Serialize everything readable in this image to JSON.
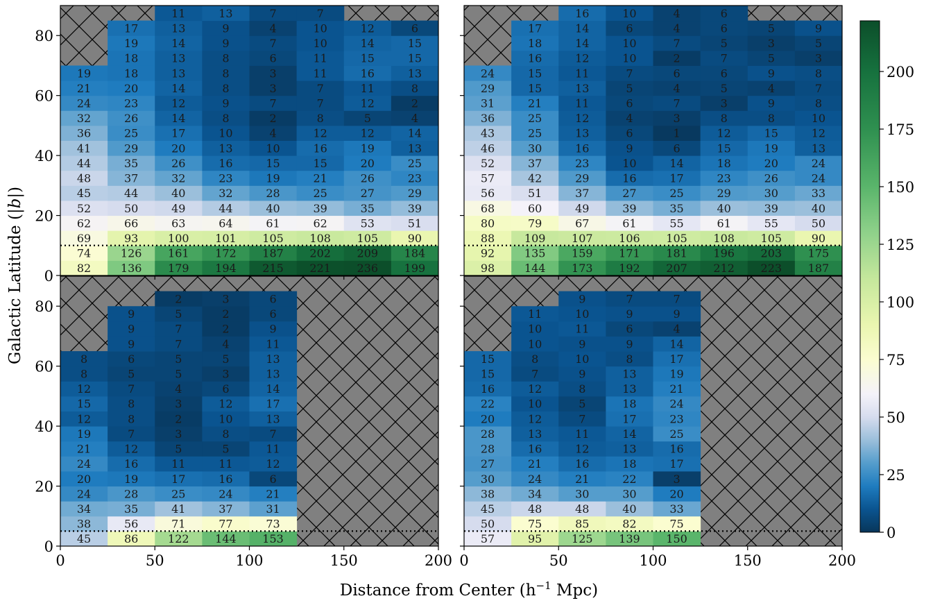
{
  "chart_data": {
    "type": "heatmap",
    "xlabel": "Distance from Center (h",
    "xlabel_sup": "−1",
    "xlabel_tail": " Mpc)",
    "ylabel_main": "Galactic Latitude (",
    "ylabel_b": "|b|",
    "ylabel_close": ")",
    "xlim": [
      0,
      200
    ],
    "ylim": [
      0,
      90
    ],
    "x_ticks": [
      "0",
      "50",
      "100",
      "150",
      "200"
    ],
    "y_ticks": [
      "0",
      "20",
      "40",
      "60",
      "80"
    ],
    "colorbar": {
      "vmin": 0,
      "vmax": 222,
      "ticks": [
        "0",
        "25",
        "50",
        "75",
        "100",
        "125",
        "150",
        "175",
        "200"
      ],
      "tick_values": [
        0,
        25,
        50,
        75,
        100,
        125,
        150,
        175,
        200
      ]
    },
    "colors": {
      "masked": "#808080",
      "dotted_line": "#000000",
      "cmap_stops": [
        {
          "v": 0,
          "c": "#08365a"
        },
        {
          "v": 10,
          "c": "#0a5490"
        },
        {
          "v": 20,
          "c": "#1f7cbf"
        },
        {
          "v": 30,
          "c": "#559dcc"
        },
        {
          "v": 40,
          "c": "#9bbfdb"
        },
        {
          "v": 50,
          "c": "#d6dcee"
        },
        {
          "v": 60,
          "c": "#f4f2f9"
        },
        {
          "v": 75,
          "c": "#fbfdd0"
        },
        {
          "v": 90,
          "c": "#eaf6b0"
        },
        {
          "v": 110,
          "c": "#c5e79c"
        },
        {
          "v": 130,
          "c": "#8fd18a"
        },
        {
          "v": 150,
          "c": "#5ab56b"
        },
        {
          "v": 175,
          "c": "#2f9050"
        },
        {
          "v": 200,
          "c": "#16713e"
        },
        {
          "v": 222,
          "c": "#0c4e2a"
        }
      ]
    },
    "panels": [
      {
        "id": "top-left",
        "dotted_line_y": 10,
        "y_edges": [
          0,
          5,
          10,
          15,
          20,
          25,
          30,
          35,
          40,
          45,
          50,
          55,
          60,
          65,
          70,
          75,
          80,
          85,
          90
        ],
        "x_edges": [
          0,
          25,
          50,
          75,
          100,
          125,
          150,
          175,
          200
        ],
        "values": [
          [
            82,
            136,
            179,
            194,
            215,
            221,
            236,
            199
          ],
          [
            74,
            126,
            161,
            172,
            187,
            202,
            209,
            184
          ],
          [
            69,
            93,
            100,
            101,
            105,
            108,
            105,
            90
          ],
          [
            62,
            66,
            63,
            64,
            61,
            62,
            53,
            51
          ],
          [
            52,
            50,
            49,
            44,
            40,
            39,
            35,
            39
          ],
          [
            45,
            44,
            40,
            32,
            28,
            25,
            27,
            29
          ],
          [
            48,
            37,
            32,
            23,
            19,
            21,
            26,
            23
          ],
          [
            44,
            35,
            26,
            16,
            15,
            15,
            20,
            25
          ],
          [
            41,
            29,
            20,
            13,
            10,
            16,
            19,
            13
          ],
          [
            36,
            25,
            17,
            10,
            4,
            12,
            12,
            14
          ],
          [
            32,
            26,
            14,
            8,
            2,
            8,
            5,
            4
          ],
          [
            24,
            23,
            12,
            9,
            7,
            7,
            12,
            2
          ],
          [
            21,
            20,
            14,
            8,
            3,
            7,
            11,
            8
          ],
          [
            19,
            18,
            13,
            8,
            3,
            11,
            16,
            13
          ],
          [
            null,
            18,
            13,
            8,
            6,
            11,
            15,
            15
          ],
          [
            null,
            19,
            14,
            9,
            7,
            10,
            14,
            15
          ],
          [
            null,
            17,
            13,
            9,
            4,
            10,
            12,
            6
          ],
          [
            null,
            null,
            11,
            13,
            7,
            7,
            null,
            null
          ]
        ]
      },
      {
        "id": "top-right",
        "dotted_line_y": 10,
        "y_edges": [
          0,
          5,
          10,
          15,
          20,
          25,
          30,
          35,
          40,
          45,
          50,
          55,
          60,
          65,
          70,
          75,
          80,
          85,
          90
        ],
        "x_edges": [
          0,
          25,
          50,
          75,
          100,
          125,
          150,
          175,
          200
        ],
        "values": [
          [
            98,
            144,
            173,
            192,
            207,
            212,
            223,
            187
          ],
          [
            92,
            135,
            159,
            171,
            181,
            196,
            203,
            175
          ],
          [
            88,
            109,
            107,
            106,
            105,
            108,
            105,
            90
          ],
          [
            80,
            79,
            67,
            61,
            55,
            61,
            55,
            50
          ],
          [
            68,
            60,
            49,
            39,
            35,
            40,
            39,
            40
          ],
          [
            56,
            51,
            37,
            27,
            25,
            29,
            30,
            33
          ],
          [
            57,
            42,
            29,
            16,
            17,
            23,
            26,
            24
          ],
          [
            52,
            37,
            23,
            10,
            14,
            18,
            20,
            24
          ],
          [
            46,
            30,
            16,
            9,
            6,
            15,
            19,
            13
          ],
          [
            43,
            25,
            13,
            6,
            1,
            12,
            15,
            12
          ],
          [
            36,
            25,
            12,
            4,
            3,
            8,
            8,
            10
          ],
          [
            31,
            21,
            11,
            6,
            7,
            3,
            9,
            8
          ],
          [
            29,
            15,
            13,
            5,
            4,
            5,
            4,
            7
          ],
          [
            24,
            15,
            11,
            7,
            6,
            6,
            9,
            8
          ],
          [
            null,
            16,
            12,
            10,
            2,
            7,
            5,
            3
          ],
          [
            null,
            18,
            14,
            10,
            7,
            5,
            3,
            5
          ],
          [
            null,
            17,
            14,
            6,
            4,
            6,
            5,
            9
          ],
          [
            null,
            null,
            16,
            10,
            4,
            6,
            null,
            null
          ]
        ]
      },
      {
        "id": "bottom-left",
        "dotted_line_y": 5,
        "y_edges": [
          0,
          5,
          10,
          15,
          20,
          25,
          30,
          35,
          40,
          45,
          50,
          55,
          60,
          65,
          70,
          75,
          80,
          85
        ],
        "x_edges": [
          0,
          25,
          50,
          75,
          100,
          125,
          150,
          175,
          200
        ],
        "values": [
          [
            45,
            86,
            122,
            144,
            153,
            null,
            null,
            null
          ],
          [
            38,
            56,
            71,
            77,
            73,
            null,
            null,
            null
          ],
          [
            34,
            35,
            41,
            37,
            31,
            null,
            null,
            null
          ],
          [
            24,
            28,
            25,
            24,
            21,
            null,
            null,
            null
          ],
          [
            20,
            19,
            17,
            16,
            6,
            null,
            null,
            null
          ],
          [
            24,
            16,
            11,
            11,
            12,
            null,
            null,
            null
          ],
          [
            21,
            12,
            5,
            5,
            11,
            null,
            null,
            null
          ],
          [
            19,
            7,
            3,
            8,
            7,
            null,
            null,
            null
          ],
          [
            12,
            8,
            2,
            10,
            13,
            null,
            null,
            null
          ],
          [
            15,
            8,
            3,
            12,
            17,
            null,
            null,
            null
          ],
          [
            12,
            7,
            4,
            6,
            14,
            null,
            null,
            null
          ],
          [
            8,
            5,
            5,
            3,
            13,
            null,
            null,
            null
          ],
          [
            8,
            6,
            5,
            5,
            13,
            null,
            null,
            null
          ],
          [
            null,
            9,
            7,
            4,
            11,
            null,
            null,
            null
          ],
          [
            null,
            9,
            7,
            2,
            9,
            null,
            null,
            null
          ],
          [
            null,
            9,
            5,
            2,
            6,
            null,
            null,
            null
          ],
          [
            null,
            null,
            2,
            3,
            6,
            null,
            null,
            null
          ]
        ]
      },
      {
        "id": "bottom-right",
        "dotted_line_y": 5,
        "y_edges": [
          0,
          5,
          10,
          15,
          20,
          25,
          30,
          35,
          40,
          45,
          50,
          55,
          60,
          65,
          70,
          75,
          80,
          85
        ],
        "x_edges": [
          0,
          25,
          50,
          75,
          100,
          125,
          150,
          175,
          200
        ],
        "values": [
          [
            57,
            95,
            125,
            139,
            150,
            null,
            null,
            null
          ],
          [
            50,
            75,
            85,
            82,
            75,
            null,
            null,
            null
          ],
          [
            45,
            48,
            48,
            40,
            33,
            null,
            null,
            null
          ],
          [
            38,
            34,
            30,
            30,
            20,
            null,
            null,
            null
          ],
          [
            30,
            24,
            21,
            22,
            3,
            null,
            null,
            null
          ],
          [
            27,
            21,
            16,
            18,
            17,
            null,
            null,
            null
          ],
          [
            28,
            16,
            12,
            13,
            16,
            null,
            null,
            null
          ],
          [
            28,
            13,
            11,
            14,
            25,
            null,
            null,
            null
          ],
          [
            20,
            12,
            7,
            17,
            23,
            null,
            null,
            null
          ],
          [
            22,
            10,
            5,
            18,
            24,
            null,
            null,
            null
          ],
          [
            16,
            12,
            8,
            13,
            21,
            null,
            null,
            null
          ],
          [
            15,
            7,
            9,
            13,
            19,
            null,
            null,
            null
          ],
          [
            15,
            8,
            10,
            8,
            17,
            null,
            null,
            null
          ],
          [
            null,
            10,
            9,
            9,
            14,
            null,
            null,
            null
          ],
          [
            null,
            10,
            11,
            6,
            4,
            null,
            null,
            null
          ],
          [
            null,
            11,
            10,
            9,
            9,
            null,
            null,
            null
          ],
          [
            null,
            null,
            9,
            7,
            7,
            null,
            null,
            null
          ]
        ]
      }
    ]
  }
}
